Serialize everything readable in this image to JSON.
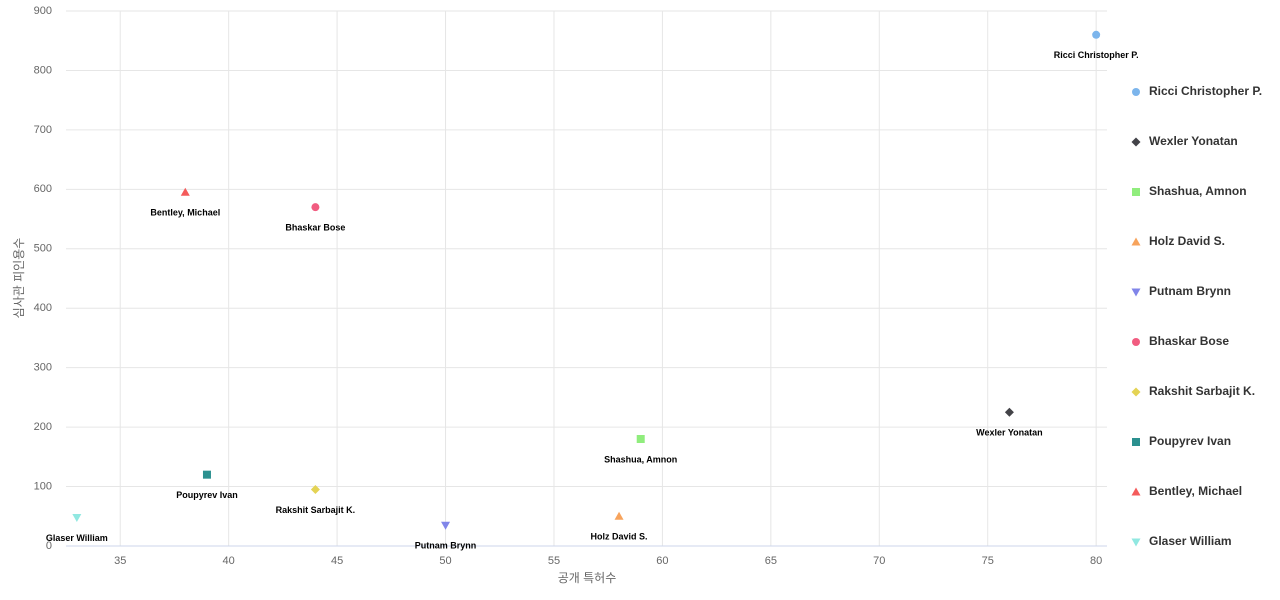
{
  "chart_data": {
    "type": "scatter",
    "x_label": "공개 특허수",
    "y_label": "심사관 피인용수",
    "xlim": [
      32.5,
      80.5
    ],
    "xticks": [
      35,
      40,
      45,
      50,
      55,
      60,
      65,
      70,
      75,
      80
    ],
    "ylim": [
      0,
      900
    ],
    "yticks": [
      0,
      100,
      200,
      300,
      400,
      500,
      600,
      700,
      800,
      900
    ],
    "grid": true,
    "legend": "right",
    "series": [
      {
        "name": "Ricci Christopher P.",
        "color": "#7cb5ec",
        "marker": "circle",
        "x": [
          80
        ],
        "values": [
          860
        ]
      },
      {
        "name": "Wexler Yonatan",
        "color": "#434348",
        "marker": "diamond",
        "x": [
          76
        ],
        "values": [
          225
        ]
      },
      {
        "name": "Shashua, Amnon",
        "color": "#90ed7d",
        "marker": "square",
        "x": [
          59
        ],
        "values": [
          180
        ]
      },
      {
        "name": "Holz David S.",
        "color": "#f7a35c",
        "marker": "triangle",
        "x": [
          58
        ],
        "values": [
          50
        ]
      },
      {
        "name": "Putnam Brynn",
        "color": "#8085e9",
        "marker": "triangle-down",
        "x": [
          50
        ],
        "values": [
          35
        ]
      },
      {
        "name": "Bhaskar Bose",
        "color": "#f15c80",
        "marker": "circle",
        "x": [
          44
        ],
        "values": [
          570
        ]
      },
      {
        "name": "Rakshit Sarbajit K.",
        "color": "#e4d354",
        "marker": "diamond",
        "x": [
          44
        ],
        "values": [
          95
        ]
      },
      {
        "name": "Poupyrev Ivan",
        "color": "#2b908f",
        "marker": "square",
        "x": [
          39
        ],
        "values": [
          120
        ]
      },
      {
        "name": "Bentley, Michael",
        "color": "#f45b5b",
        "marker": "triangle",
        "x": [
          38
        ],
        "values": [
          595
        ]
      },
      {
        "name": "Glaser William",
        "color": "#91e8e1",
        "marker": "triangle-down",
        "x": [
          33
        ],
        "values": [
          48
        ]
      }
    ]
  }
}
